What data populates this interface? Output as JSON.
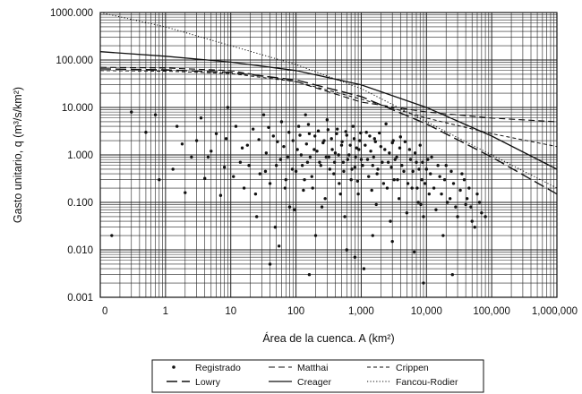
{
  "chart_data": {
    "type": "scatter",
    "y_scale": "log",
    "x_scale": "log",
    "grid": "dense (major and minor, both axes)",
    "legend_placement": "bottom-center, below chart",
    "xlabel": "Área de la cuenca. A (km²)",
    "ylabel": "Gasto unitario, q (m³/s/km²)",
    "x_ticks": [
      {
        "label": "0",
        "value": 0.1
      },
      {
        "label": "1",
        "value": 1
      },
      {
        "label": "10",
        "value": 10
      },
      {
        "label": "100",
        "value": 100
      },
      {
        "label": "1,000",
        "value": 1000
      },
      {
        "label": "10,000",
        "value": 10000
      },
      {
        "label": "100,000",
        "value": 100000
      },
      {
        "label": "1,000,000",
        "value": 1000000
      }
    ],
    "y_ticks": [
      {
        "label": "1000.000",
        "value": 1000
      },
      {
        "label": "100.000",
        "value": 100
      },
      {
        "label": "10.000",
        "value": 10
      },
      {
        "label": "1.000",
        "value": 1
      },
      {
        "label": "0.100",
        "value": 0.1
      },
      {
        "label": "0.010",
        "value": 0.01
      },
      {
        "label": "0.001",
        "value": 0.001
      }
    ],
    "xlim": [
      0.1,
      1000000
    ],
    "ylim": [
      0.001,
      1000
    ],
    "series": [
      {
        "name": "Registrado",
        "style": "points",
        "points": [
          [
            0.3,
            8
          ],
          [
            0.5,
            3
          ],
          [
            0.7,
            7
          ],
          [
            1.3,
            0.5
          ],
          [
            1.5,
            4
          ],
          [
            2,
            0.16
          ],
          [
            2.5,
            0.9
          ],
          [
            3.5,
            6
          ],
          [
            3,
            2
          ],
          [
            4,
            0.32
          ],
          [
            5,
            1.2
          ],
          [
            6,
            2.8
          ],
          [
            7,
            0.14
          ],
          [
            8,
            0.55
          ],
          [
            9,
            10
          ],
          [
            12,
            4
          ],
          [
            14,
            0.7
          ],
          [
            16,
            0.2
          ],
          [
            18,
            1.6
          ],
          [
            22,
            3.5
          ],
          [
            25,
            0.05
          ],
          [
            28,
            0.4
          ],
          [
            32,
            7
          ],
          [
            35,
            1.1
          ],
          [
            40,
            0.25
          ],
          [
            45,
            2.5
          ],
          [
            50,
            0.6
          ],
          [
            55,
            0.012
          ],
          [
            60,
            5
          ],
          [
            65,
            1.5
          ],
          [
            70,
            0.3
          ],
          [
            75,
            0.9
          ],
          [
            80,
            0.08
          ],
          [
            90,
            2
          ],
          [
            100,
            0.45
          ],
          [
            110,
            4
          ],
          [
            120,
            1
          ],
          [
            130,
            0.18
          ],
          [
            140,
            7
          ],
          [
            150,
            0.7
          ],
          [
            160,
            2.8
          ],
          [
            175,
            0.35
          ],
          [
            190,
            1.3
          ],
          [
            200,
            0.02
          ],
          [
            220,
            3.2
          ],
          [
            240,
            0.6
          ],
          [
            260,
            1.8
          ],
          [
            280,
            0.12
          ],
          [
            300,
            5.5
          ],
          [
            320,
            0.9
          ],
          [
            350,
            2.2
          ],
          [
            380,
            0.4
          ],
          [
            400,
            1.1
          ],
          [
            430,
            3.5
          ],
          [
            460,
            0.25
          ],
          [
            500,
            1.6
          ],
          [
            530,
            0.7
          ],
          [
            560,
            0.05
          ],
          [
            600,
            2.6
          ],
          [
            650,
            1
          ],
          [
            700,
            0.3
          ],
          [
            750,
            4
          ],
          [
            800,
            0.55
          ],
          [
            850,
            1.4
          ],
          [
            900,
            0.15
          ],
          [
            950,
            2
          ],
          [
            1000,
            0.8
          ],
          [
            1100,
            0.004
          ],
          [
            1200,
            3
          ],
          [
            1300,
            0.35
          ],
          [
            1400,
            1.2
          ],
          [
            1500,
            0.6
          ],
          [
            1600,
            2.2
          ],
          [
            1700,
            0.09
          ],
          [
            1800,
            0.5
          ],
          [
            2000,
            1.5
          ],
          [
            2200,
            0.25
          ],
          [
            2400,
            4.5
          ],
          [
            2600,
            0.7
          ],
          [
            2800,
            0.04
          ],
          [
            3000,
            1.8
          ],
          [
            3200,
            0.3
          ],
          [
            3500,
            0.9
          ],
          [
            3800,
            0.12
          ],
          [
            4000,
            2.4
          ],
          [
            4500,
            0.45
          ],
          [
            5000,
            0.06
          ],
          [
            5500,
            1.3
          ],
          [
            6000,
            0.2
          ],
          [
            6500,
            0.009
          ],
          [
            7000,
            0.7
          ],
          [
            7500,
            0.1
          ],
          [
            8000,
            1.6
          ],
          [
            8500,
            0.3
          ],
          [
            9000,
            0.05
          ],
          [
            10000,
            0.5
          ],
          [
            11000,
            0.15
          ],
          [
            12000,
            0.9
          ],
          [
            14000,
            0.07
          ],
          [
            16000,
            0.35
          ],
          [
            18000,
            0.02
          ],
          [
            20000,
            0.6
          ],
          [
            23000,
            0.12
          ],
          [
            26000,
            0.25
          ],
          [
            30000,
            0.05
          ],
          [
            35000,
            0.4
          ],
          [
            40000,
            0.09
          ],
          [
            45000,
            0.2
          ],
          [
            50000,
            0.04
          ],
          [
            60000,
            0.15
          ],
          [
            70000,
            0.06
          ],
          [
            0.15,
            0.02
          ],
          [
            0.8,
            0.3
          ],
          [
            1.8,
            1.7
          ],
          [
            4.5,
            0.9
          ],
          [
            8.5,
            2.2
          ],
          [
            11,
            0.35
          ],
          [
            15,
            1.4
          ],
          [
            19,
            0.6
          ],
          [
            24,
            0.15
          ],
          [
            27,
            2.1
          ],
          [
            34,
            0.45
          ],
          [
            38,
            3.8
          ],
          [
            48,
            0.03
          ],
          [
            52,
            1.9
          ],
          [
            58,
            0.8
          ],
          [
            68,
            0.2
          ],
          [
            78,
            3
          ],
          [
            88,
            0.5
          ],
          [
            95,
            0.07
          ],
          [
            105,
            1.3
          ],
          [
            115,
            2.6
          ],
          [
            125,
            0.6
          ],
          [
            135,
            0.3
          ],
          [
            145,
            1.7
          ],
          [
            155,
            4.4
          ],
          [
            165,
            0.9
          ],
          [
            180,
            0.2
          ],
          [
            195,
            2.5
          ],
          [
            210,
            1.2
          ],
          [
            230,
            0.7
          ],
          [
            250,
            0.08
          ],
          [
            270,
            2
          ],
          [
            290,
            0.9
          ],
          [
            310,
            3.4
          ],
          [
            330,
            0.5
          ],
          [
            360,
            1.3
          ],
          [
            390,
            0.7
          ],
          [
            420,
            2.8
          ],
          [
            450,
            1
          ],
          [
            480,
            0.15
          ],
          [
            510,
            1.9
          ],
          [
            540,
            0.45
          ],
          [
            580,
            3.1
          ],
          [
            620,
            0.8
          ],
          [
            680,
            1.6
          ],
          [
            720,
            0.5
          ],
          [
            780,
            2.2
          ],
          [
            820,
            0.9
          ],
          [
            880,
            0.28
          ],
          [
            920,
            1.3
          ],
          [
            980,
            2.9
          ],
          [
            1050,
            0.6
          ],
          [
            1150,
            1.6
          ],
          [
            1250,
            0.8
          ],
          [
            1350,
            2.5
          ],
          [
            1450,
            0.18
          ],
          [
            1550,
            0.9
          ],
          [
            1650,
            1.9
          ],
          [
            1750,
            0.4
          ],
          [
            1900,
            2.9
          ],
          [
            2100,
            0.7
          ],
          [
            2300,
            1.3
          ],
          [
            2500,
            0.2
          ],
          [
            2700,
            1.1
          ],
          [
            2900,
            0.55
          ],
          [
            3100,
            2
          ],
          [
            3300,
            0.8
          ],
          [
            3600,
            0.3
          ],
          [
            3900,
            1.4
          ],
          [
            4200,
            0.6
          ],
          [
            4700,
            1.9
          ],
          [
            5200,
            0.25
          ],
          [
            5700,
            0.8
          ],
          [
            6200,
            0.45
          ],
          [
            6700,
            1.1
          ],
          [
            7200,
            0.2
          ],
          [
            7700,
            0.5
          ],
          [
            8200,
            0.09
          ],
          [
            8700,
            0.7
          ],
          [
            9500,
            0.25
          ],
          [
            10500,
            0.8
          ],
          [
            11500,
            0.4
          ],
          [
            13000,
            0.2
          ],
          [
            15000,
            0.6
          ],
          [
            17000,
            0.15
          ],
          [
            19000,
            0.3
          ],
          [
            21000,
            0.1
          ],
          [
            24000,
            0.45
          ],
          [
            28000,
            0.08
          ],
          [
            33000,
            0.18
          ],
          [
            38000,
            0.3
          ],
          [
            42000,
            0.12
          ],
          [
            48000,
            0.08
          ],
          [
            55000,
            0.03
          ],
          [
            65000,
            0.1
          ],
          [
            80000,
            0.05
          ],
          [
            25000,
            0.003
          ],
          [
            9000,
            0.002
          ],
          [
            40,
            0.005
          ],
          [
            160,
            0.003
          ],
          [
            600,
            0.01
          ],
          [
            3000,
            0.015
          ],
          [
            800,
            0.007
          ],
          [
            1500,
            0.02
          ]
        ]
      },
      {
        "name": "Lowry",
        "style": "long-dash",
        "x": [
          0.1,
          1,
          10,
          100,
          1000,
          10000,
          100000,
          1000000
        ],
        "y": [
          65,
          62,
          55,
          38,
          17,
          4.5,
          0.9,
          0.15
        ]
      },
      {
        "name": "Matthai",
        "style": "dash",
        "x": [
          0.1,
          1,
          10,
          100,
          1000,
          10000,
          100000,
          1000000
        ],
        "y": [
          70,
          68,
          60,
          35,
          13,
          8,
          6,
          5
        ]
      },
      {
        "name": "Creager",
        "style": "solid",
        "x": [
          0.1,
          1,
          10,
          100,
          1000,
          10000,
          100000,
          1000000
        ],
        "y": [
          150,
          120,
          90,
          60,
          30,
          10,
          2.5,
          0.5
        ]
      },
      {
        "name": "Crippen",
        "style": "short-dash",
        "x": [
          0.1,
          1,
          10,
          100,
          1000,
          10000,
          100000,
          1000000
        ],
        "y": [
          60,
          58,
          52,
          35,
          15,
          6,
          2.8,
          1.5
        ]
      },
      {
        "name": "Fancou-Rodier",
        "style": "dotted",
        "x": [
          0.1,
          1,
          10,
          100,
          1000,
          10000,
          100000,
          1000000
        ],
        "y": [
          1000,
          500,
          200,
          80,
          25,
          5,
          1,
          0.2
        ]
      }
    ]
  }
}
